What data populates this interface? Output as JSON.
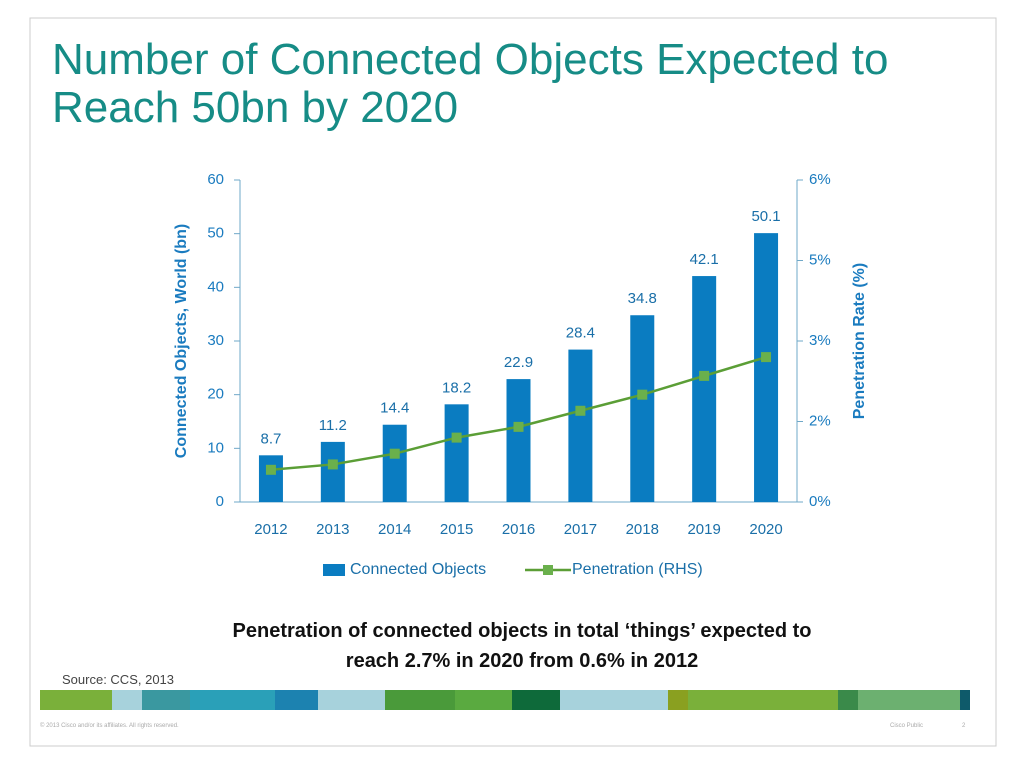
{
  "chart_data": {
    "type": "bar",
    "title": "Number of Connected Objects Expected to Reach 50bn by 2020",
    "categories": [
      "2012",
      "2013",
      "2014",
      "2015",
      "2016",
      "2017",
      "2018",
      "2019",
      "2020"
    ],
    "series": [
      {
        "name": "Connected Objects",
        "type": "bar",
        "color": "#0a7cc1",
        "values": [
          8.7,
          11.2,
          14.4,
          18.2,
          22.9,
          28.4,
          34.8,
          42.1,
          50.1
        ]
      },
      {
        "name": "Penetration (RHS)",
        "type": "line",
        "axis": "y2",
        "color": "#5b9e36",
        "values": [
          0.6,
          0.7,
          0.9,
          1.2,
          1.4,
          1.7,
          2.0,
          2.35,
          2.7
        ]
      }
    ],
    "ylabel": "Connected Objects, World (bn)",
    "y2label": "Penetration Rate (%)",
    "ylim": [
      0,
      60
    ],
    "yticks": [
      0,
      10,
      20,
      30,
      40,
      50,
      60
    ],
    "y2lim": [
      0,
      6
    ],
    "y2ticks": [
      {
        "value": 0,
        "label": "0%"
      },
      {
        "value": 1.5,
        "label": "2%"
      },
      {
        "value": 3,
        "label": "3%"
      },
      {
        "value": 4.5,
        "label": "5%"
      },
      {
        "value": 6,
        "label": "6%"
      }
    ],
    "grid": false,
    "legend": "bottom",
    "annotation": "Penetration of connected objects in total ‘things’ expected to reach 2.7% in 2020 from 0.6% in 2012",
    "source": "Source: CCS, 2013"
  },
  "footer": {
    "copyright": "© 2013 Cisco and/or its affiliates. All rights reserved.",
    "classification": "Cisco Public",
    "page": "2"
  }
}
